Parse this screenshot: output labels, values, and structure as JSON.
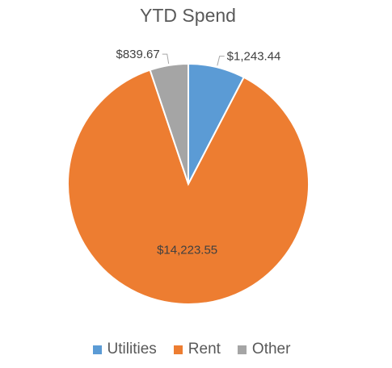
{
  "chart_data": {
    "type": "pie",
    "title": "YTD Spend",
    "categories": [
      "Utilities",
      "Rent",
      "Other"
    ],
    "values": [
      1243.44,
      14223.55,
      839.67
    ],
    "data_labels": [
      "$1,243.44",
      "$14,223.55",
      "$839.67"
    ],
    "colors": [
      "#5b9bd5",
      "#ed7d31",
      "#a5a5a5"
    ],
    "legend_position": "bottom",
    "start_angle": "top, clockwise"
  }
}
